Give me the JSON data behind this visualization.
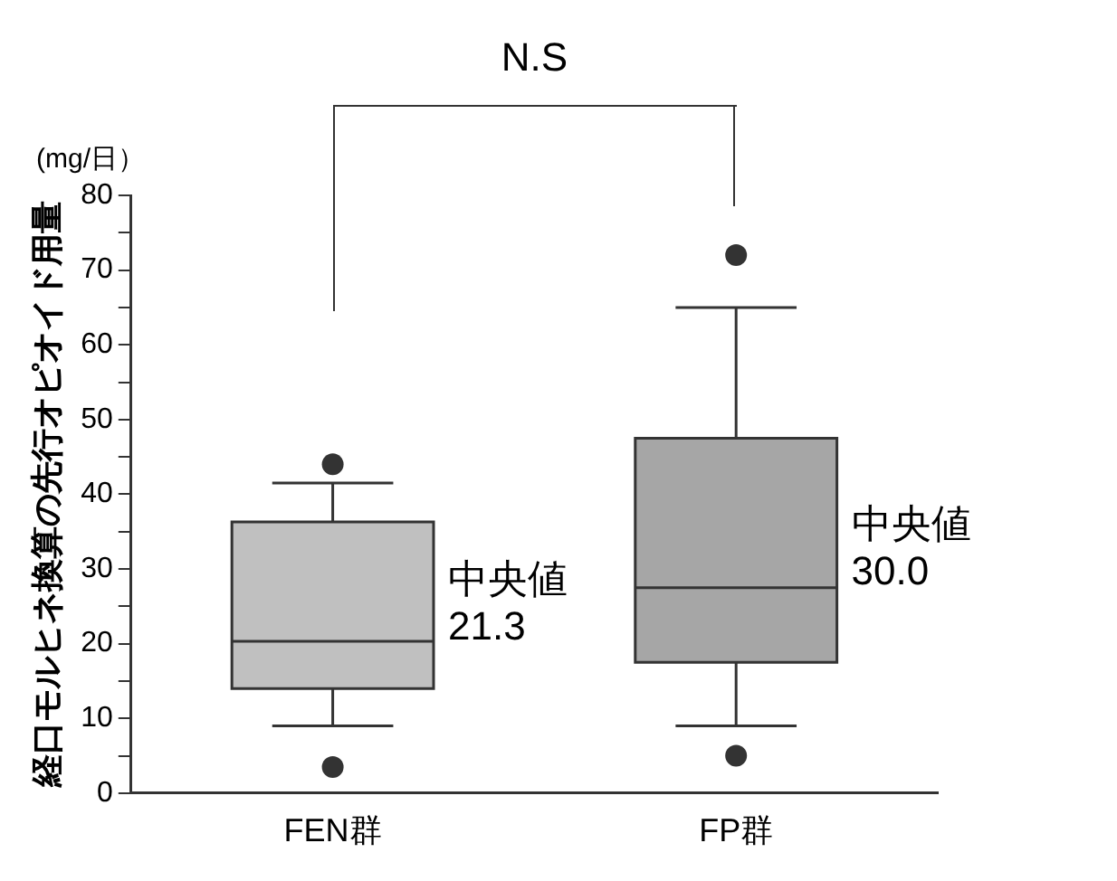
{
  "chart_data": {
    "type": "box",
    "categories": [
      "FEN群",
      "FP群"
    ],
    "colors": [
      "#c0c0c0",
      "#a6a6a6"
    ],
    "boxes": [
      {
        "low": 9,
        "q1": 14,
        "median": 20.3,
        "q3": 36.3,
        "high": 41.5,
        "outliers": [
          44,
          3.5
        ]
      },
      {
        "low": 9,
        "q1": 17.5,
        "median": 27.5,
        "q3": 47.5,
        "high": 65,
        "outliers": [
          72,
          5
        ]
      }
    ],
    "ylabel": "経口モルヒネ換算の先行オピオイド用量",
    "ylim": [
      0,
      80
    ],
    "yticks": [
      0,
      {
        "value": 5,
        "label": null
      },
      10,
      {
        "value": 15,
        "label": null
      },
      20,
      {
        "value": 25,
        "label": null
      },
      30,
      {
        "value": 35,
        "label": null
      },
      40,
      {
        "value": 45,
        "label": null
      },
      50,
      {
        "value": 55,
        "label": null
      },
      60,
      {
        "value": 65,
        "label": null
      },
      70,
      {
        "value": 75,
        "label": null
      },
      80
    ],
    "annotations": [
      "N.S",
      "(mg/日）",
      "中央値\n21.3",
      "中央値\n30.0"
    ],
    "grid": false,
    "legend": false
  }
}
